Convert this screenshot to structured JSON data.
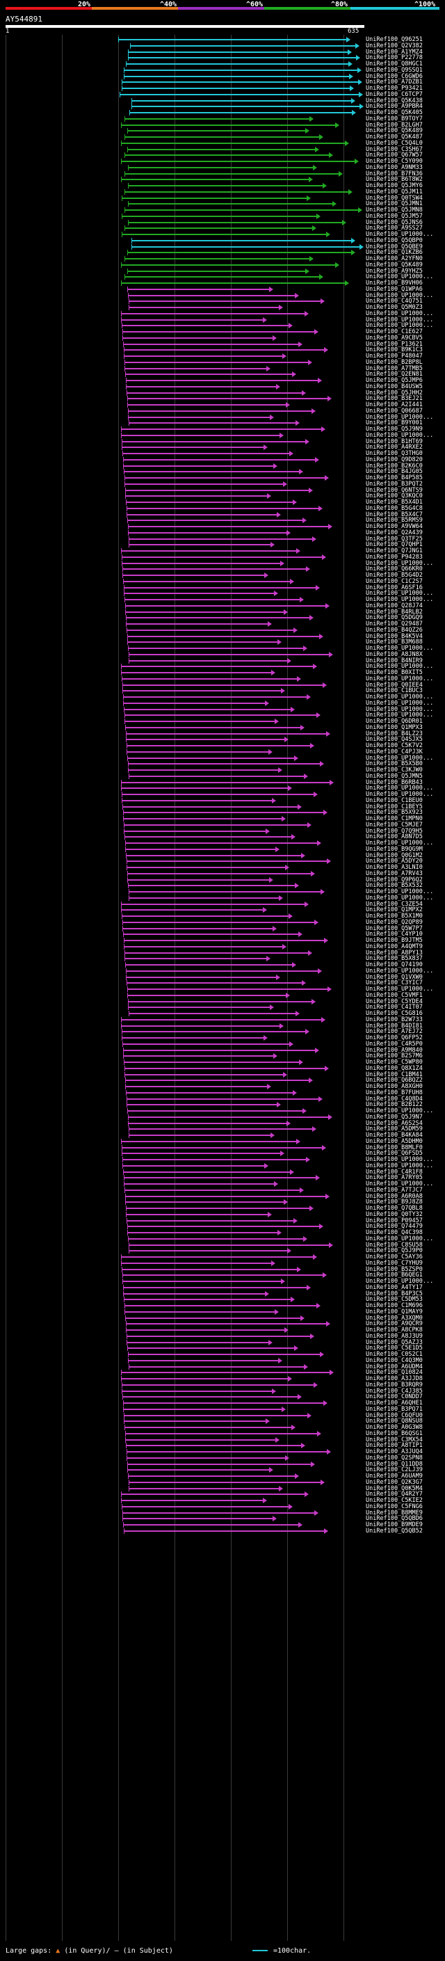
{
  "legend": {
    "colors": [
      "#e8141c",
      "#e87820",
      "#9b2fbe",
      "#22aa22",
      "#22c8d8"
    ],
    "labels": [
      "20%",
      "^40%",
      "^60%",
      "^80%",
      "^100%"
    ]
  },
  "query": {
    "id": "AY544891",
    "start": "1",
    "end": "635"
  },
  "footer": {
    "large_gaps_label": "Large gaps:",
    "in_query_label": "(in Query)/",
    "in_subject_label": "(in Subject)",
    "scale_label": "=100char."
  },
  "hit_groups": [
    {
      "color": "#22c8d8",
      "ids": [
        "UniRef100_Q96251",
        "UniRef100_Q2V382",
        "UniRef100_A1YMZ4",
        "UniRef100_P22778",
        "UniRef100_Q8HGC1",
        "UniRef100_Q9SSQ1",
        "UniRef100_C6GWD6",
        "UniRef100_A7DZB1",
        "UniRef100_P93421",
        "UniRef100_C6TCP7",
        "UniRef100_Q5K438",
        "UniRef100_A9PBR4",
        "UniRef100_Q5K405"
      ]
    },
    {
      "color": "#22aa22",
      "ids": [
        "UniRef100_B9TOY7",
        "UniRef100_B2LGH7",
        "UniRef100_Q5K489",
        "UniRef100_Q5K487",
        "UniRef100_C5Q4L0",
        "UniRef100_C3SH67",
        "UniRef100_Q67W57",
        "UniRef100_C5Y090",
        "UniRef100_A9NM33",
        "UniRef100_B7FN36",
        "UniRef100_B6T8W2",
        "UniRef100_Q5JMY6",
        "UniRef100_Q5JM11",
        "UniRef100_Q0TSW4",
        "UniRef100_Q5JMN1",
        "UniRef100_Q5JMN8",
        "UniRef100_Q5JM57",
        "UniRef100_Q5JNS6",
        "UniRef100_A9SS27",
        "UniRef100_UP1000..."
      ]
    },
    {
      "color": "#22c8d8",
      "ids": [
        "UniRef100_Q5QBP0",
        "UniRef100_Q5QBE9"
      ]
    },
    {
      "color": "#22aa22",
      "ids": [
        "UniRef100_Q1KZB6",
        "UniRef100_A2YFN0",
        "UniRef100_Q5K489",
        "UniRef100_A9YHZ5",
        "UniRef100_UP1000...",
        "UniRef100_B9VH06"
      ]
    },
    {
      "color": "#c83cc8",
      "ids": [
        "UniRef100_Q1WPA6",
        "UniRef100_UP1000...",
        "UniRef100_C4Q751",
        "UniRef100_Q5M0Z3",
        "UniRef100_UP1000...",
        "UniRef100_UP1000...",
        "UniRef100_UP1000...",
        "UniRef100_C1E627",
        "UniRef100_A9CBV5",
        "UniRef100_P13621",
        "UniRef100_B9K1C3",
        "UniRef100_P48047",
        "UniRef100_B2BP8L",
        "UniRef100_A7TMB5",
        "UniRef100_Q2EN81",
        "UniRef100_Q5JMP6",
        "UniRef100_B4USW5",
        "UniRef100_Q5JHH2",
        "UniRef100_B3EJ21",
        "UniRef100_A2I441",
        "UniRef100_Q06687",
        "UniRef100_UP1000...",
        "UniRef100_B9Y001",
        "UniRef100_Q5J9N9",
        "UniRef100_UP1000...",
        "UniRef100_B1HT69",
        "UniRef100_A4RXE2",
        "UniRef100_Q3THG0",
        "UniRef100_Q9D820",
        "UniRef100_B2K6C0",
        "UniRef100_B4JG05",
        "UniRef100_B4P585",
        "UniRef100_B3PQT2",
        "UniRef100_Q6NTS9",
        "UniRef100_Q3KQC0",
        "UniRef100_B5X4D1",
        "UniRef100_B5G4C8",
        "UniRef100_B5X4C7",
        "UniRef100_B5RMS9",
        "UniRef100_A9VW64",
        "UniRef100_Q2A439",
        "UniRef100_Q3TF25",
        "UniRef100_Q7QHP1",
        "UniRef100_Q7JNG1",
        "UniRef100_P94283",
        "UniRef100_UP1000...",
        "UniRef100_Q66KR0",
        "UniRef100_B5G4D2",
        "UniRef100_C1C2S7",
        "UniRef100_A6SF16",
        "UniRef100_UP1000...",
        "UniRef100_UP1000...",
        "UniRef100_Q28J74",
        "UniRef100_B4RLB2",
        "UniRef100_Q5DGQ9",
        "UniRef100_Q29487",
        "UniRef100_B4QZ26",
        "UniRef100_B4K5V4",
        "UniRef100_B3M688",
        "UniRef100_UP1000...",
        "UniRef100_A8JN8X",
        "UniRef100_B4NIR9",
        "UniRef100_UP1000...",
        "UniRef100_B0XIT5",
        "UniRef100_UP1000...",
        "UniRef100_Q0IEE4",
        "UniRef100_C1BUC3",
        "UniRef100_UP1000...",
        "UniRef100_UP1000...",
        "UniRef100_UP1000...",
        "UniRef100_UP1000...",
        "UniRef100_Q6DR01",
        "UniRef100_Q1MPX3",
        "UniRef100_B4LZ23",
        "UniRef100_Q4SJX5",
        "UniRef100_C5K7V2",
        "UniRef100_C4PJ3K",
        "UniRef100_UP1000...",
        "UniRef100_B5X5B0",
        "UniRef100_C3KJW0",
        "UniRef100_Q5JMN5",
        "UniRef100_B6RB43",
        "UniRef100_UP1000...",
        "UniRef100_UP1000...",
        "UniRef100_C1BEU0",
        "UniRef100_C1BEY5",
        "UniRef100_B5X923",
        "UniRef100_C1MPN0",
        "UniRef100_C5MJE7",
        "UniRef100_Q7Q9H5",
        "UniRef100_A8N7D5",
        "UniRef100_UP1000...",
        "UniRef100_B9QG9M",
        "UniRef100_Q0G1M2",
        "UniRef100_A5DY20",
        "UniRef100_A3LNI0",
        "UniRef100_A7RV43",
        "UniRef100_Q9P6Q2",
        "UniRef100_B5X532",
        "UniRef100_UP1000...",
        "UniRef100_UP1000...",
        "UniRef100_C3ZE54",
        "UniRef100_Q1MPX2",
        "UniRef100_B5X1M0",
        "UniRef100_Q2QP89",
        "UniRef100_Q5W7P7",
        "UniRef100_C4YP10",
        "UniRef100_B9JTM5",
        "UniRef100_A4QMT9",
        "UniRef100_A8PY13",
        "UniRef100_B5X837",
        "UniRef100_Q74190",
        "UniRef100_UP1000...",
        "UniRef100_Q1VXW0",
        "UniRef100_C3YIC7",
        "UniRef100_UP1000...",
        "UniRef100_C5VMF1",
        "UniRef100_C5YDE4",
        "UniRef100_C4IT07",
        "UniRef100_C5G816",
        "UniRef100_B2W733",
        "UniRef100_B4DI81",
        "UniRef100_A7EJ72",
        "UniRef100_Q6FP52",
        "UniRef100_C4R5P0",
        "UniRef100_A9M840",
        "UniRef100_B2S7M6",
        "UniRef100_C5WP80",
        "UniRef100_Q8X1Z4",
        "UniRef100_C1BM41",
        "UniRef100_Q6BQZ2",
        "UniRef100_A8XGH0",
        "UniRef100_B7FUH8",
        "UniRef100_C4Q8D4",
        "UniRef100_B2B122",
        "UniRef100_UP1000...",
        "UniRef100_Q5J9N7",
        "UniRef100_A6S2S4",
        "UniRef100_A5DM59",
        "UniRef100_B4KA84",
        "UniRef100_A5DHM0",
        "UniRef100_B8MLF0",
        "UniRef100_Q6FSD5",
        "UniRef100_UP1000...",
        "UniRef100_UP1000...",
        "UniRef100_C4R1F8",
        "UniRef100_A7RY05",
        "UniRef100_UP1000...",
        "UniRef100_A7TJC7",
        "UniRef100_A6R0A8",
        "UniRef100_B9J8Z8",
        "UniRef100_Q7QBL8",
        "UniRef100_Q0TY32",
        "UniRef100_P09457",
        "UniRef100_Q74479",
        "UniRef100_Q4C398",
        "UniRef100_UP1000...",
        "UniRef100_C8SU58",
        "UniRef100_Q5J9P0",
        "UniRef100_C5AY36",
        "UniRef100_C7YHU9",
        "UniRef100_B5ZSP0",
        "UniRef100_B6QEG1",
        "UniRef100_UP1000...",
        "UniRef100_A4TY17",
        "UniRef100_B4P3C5",
        "UniRef100_C5DM53",
        "UniRef100_C1M696",
        "UniRef100_Q1MAY9",
        "UniRef100_A3XQM0",
        "UniRef100_A9QCR9",
        "UniRef100_A8CPK8",
        "UniRef100_A8J3U9",
        "UniRef100_Q5AZJ3",
        "UniRef100_C5E1D5",
        "UniRef100_C0S2C1",
        "UniRef100_C4Q3M0",
        "UniRef100_A6UDM4",
        "UniRef100_Q10824",
        "UniRef100_A3JJD8",
        "UniRef100_B3RQR9",
        "UniRef100_C4J385",
        "UniRef100_C0NDD7",
        "UniRef100_A6QHE1",
        "UniRef100_B3PQ71",
        "UniRef100_C6QFU0",
        "UniRef100_Q8NSU8",
        "UniRef100_A0G3W8",
        "UniRef100_B6QSG1",
        "UniRef100_C3MX54",
        "UniRef100_A8TIP1",
        "UniRef100_A3JUQ4",
        "UniRef100_Q2SPN8",
        "UniRef100_Q11DD8",
        "UniRef100_C2LJ39",
        "UniRef100_A6UAM9",
        "UniRef100_Q2K3G7",
        "UniRef100_Q0K5M4",
        "UniRef100_Q4R2Y7",
        "UniRef100_C5KIE2",
        "UniRef100_C5FNG6",
        "UniRef100_B8MME9",
        "UniRef100_Q5QBD6",
        "UniRef100_B9MDE9",
        "UniRef100_Q5QB52"
      ]
    }
  ]
}
